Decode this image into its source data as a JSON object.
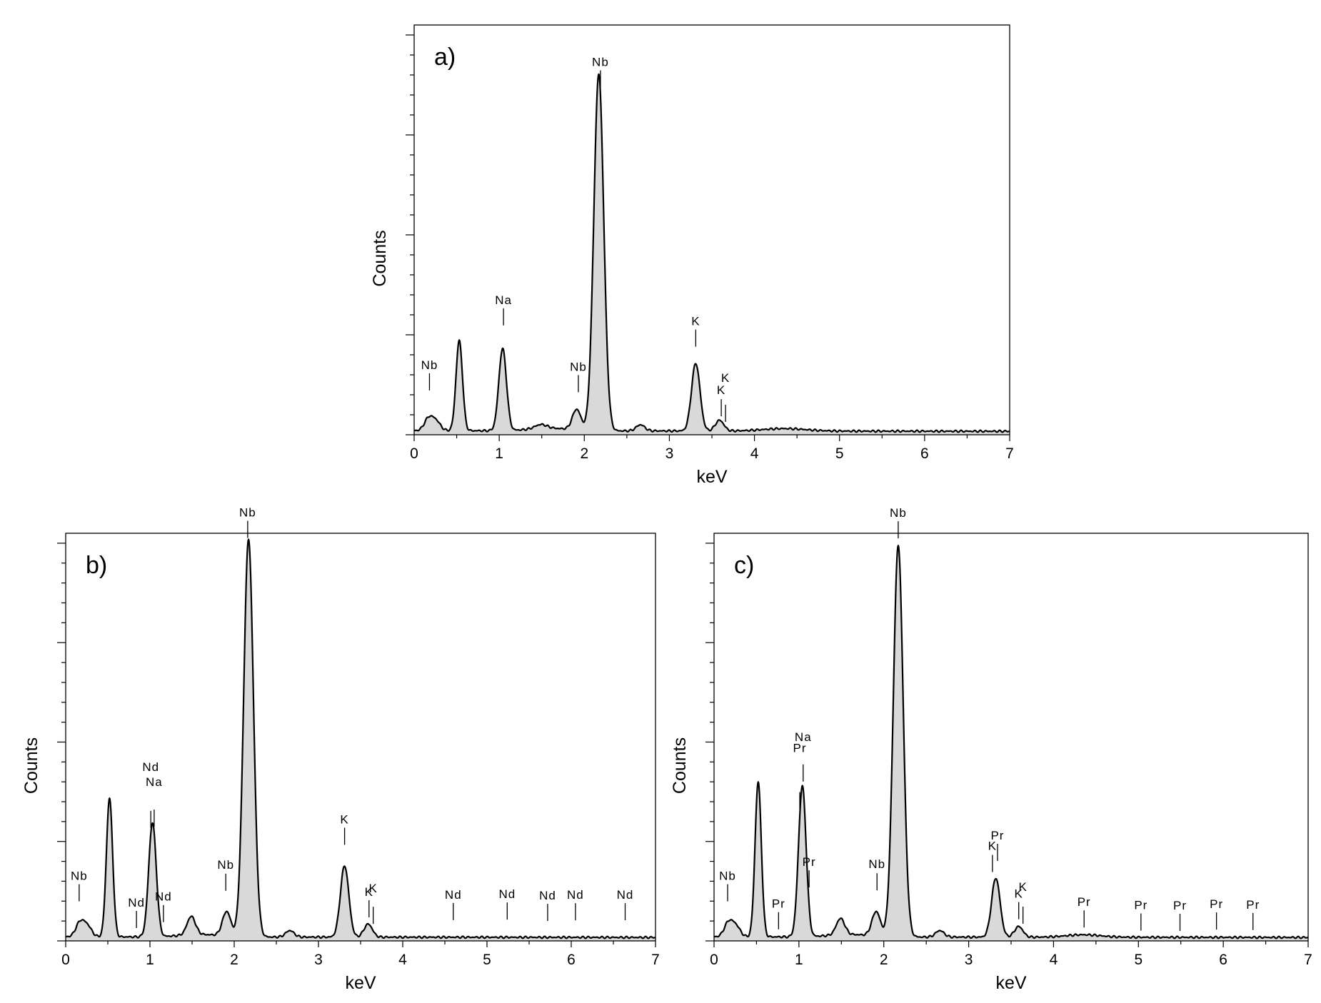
{
  "chart_data": [
    {
      "type": "area",
      "panel_label": "a)",
      "xlabel": "keV",
      "ylabel": "Counts",
      "xlim": [
        0,
        7
      ],
      "ylim": [
        0,
        100
      ],
      "x_ticks": [
        "0",
        "1",
        "2",
        "3",
        "4",
        "5",
        "6",
        "7"
      ],
      "grid": false,
      "background": 1.0,
      "peaks": [
        {
          "x": 0.17,
          "height": 3.0,
          "width": 0.05
        },
        {
          "x": 0.26,
          "height": 2.2,
          "width": 0.05
        },
        {
          "x": 0.53,
          "height": 22.0,
          "width": 0.038
        },
        {
          "x": 1.04,
          "height": 20.0,
          "width": 0.045
        },
        {
          "x": 1.49,
          "height": 1.0,
          "width": 0.07
        },
        {
          "x": 1.91,
          "height": 5.0,
          "width": 0.05
        },
        {
          "x": 2.17,
          "height": 87.0,
          "width": 0.058
        },
        {
          "x": 2.66,
          "height": 1.5,
          "width": 0.05
        },
        {
          "x": 3.31,
          "height": 16.5,
          "width": 0.05
        },
        {
          "x": 3.59,
          "height": 2.6,
          "width": 0.05
        },
        {
          "x": 4.35,
          "height": 0.6,
          "width": 0.25
        }
      ],
      "annotations": [
        {
          "label": "Nb",
          "x": 0.18
        },
        {
          "label": "Na",
          "x": 1.05
        },
        {
          "label": "Nb",
          "x": 1.93
        },
        {
          "label": "Nb",
          "x": 2.19
        },
        {
          "label": "K",
          "x": 3.31
        },
        {
          "label": "K",
          "x": 3.61
        },
        {
          "label": "K",
          "x": 3.66
        }
      ]
    },
    {
      "type": "area",
      "panel_label": "b)",
      "xlabel": "keV",
      "ylabel": "Counts",
      "xlim": [
        0,
        7
      ],
      "ylim": [
        0,
        100
      ],
      "x_ticks": [
        "0",
        "1",
        "2",
        "3",
        "4",
        "5",
        "6",
        "7"
      ],
      "grid": false,
      "background": 1.0,
      "peaks": [
        {
          "x": 0.17,
          "height": 3.5,
          "width": 0.05
        },
        {
          "x": 0.26,
          "height": 2.5,
          "width": 0.05
        },
        {
          "x": 0.52,
          "height": 34.0,
          "width": 0.037
        },
        {
          "x": 1.03,
          "height": 28.0,
          "width": 0.045
        },
        {
          "x": 1.49,
          "height": 4.5,
          "width": 0.05
        },
        {
          "x": 1.91,
          "height": 6.0,
          "width": 0.05
        },
        {
          "x": 2.17,
          "height": 97.5,
          "width": 0.058
        },
        {
          "x": 2.66,
          "height": 1.6,
          "width": 0.05
        },
        {
          "x": 3.31,
          "height": 17.5,
          "width": 0.05
        },
        {
          "x": 3.59,
          "height": 3.2,
          "width": 0.05
        }
      ],
      "annotations": [
        {
          "label": "Nb",
          "x": 0.16
        },
        {
          "label": "Nd",
          "x": 0.84
        },
        {
          "label": "Nd",
          "x": 1.01
        },
        {
          "label": "Na",
          "x": 1.05
        },
        {
          "label": "Nd",
          "x": 1.16
        },
        {
          "label": "Nb",
          "x": 1.9
        },
        {
          "label": "Nb",
          "x": 2.16
        },
        {
          "label": "K",
          "x": 3.31
        },
        {
          "label": "K",
          "x": 3.6
        },
        {
          "label": "K",
          "x": 3.65
        },
        {
          "label": "Nd",
          "x": 4.6
        },
        {
          "label": "Nd",
          "x": 5.24
        },
        {
          "label": "Nd",
          "x": 5.72
        },
        {
          "label": "Nd",
          "x": 6.05
        },
        {
          "label": "Nd",
          "x": 6.64
        }
      ]
    },
    {
      "type": "area",
      "panel_label": "c)",
      "xlabel": "keV",
      "ylabel": "Counts",
      "xlim": [
        0,
        7
      ],
      "ylim": [
        0,
        100
      ],
      "x_ticks": [
        "0",
        "1",
        "2",
        "3",
        "4",
        "5",
        "6",
        "7"
      ],
      "grid": false,
      "background": 1.0,
      "peaks": [
        {
          "x": 0.17,
          "height": 3.5,
          "width": 0.05
        },
        {
          "x": 0.26,
          "height": 2.5,
          "width": 0.05
        },
        {
          "x": 0.52,
          "height": 38.0,
          "width": 0.037
        },
        {
          "x": 1.04,
          "height": 37.0,
          "width": 0.045
        },
        {
          "x": 1.49,
          "height": 4.0,
          "width": 0.05
        },
        {
          "x": 1.91,
          "height": 6.0,
          "width": 0.05
        },
        {
          "x": 2.17,
          "height": 96.0,
          "width": 0.058
        },
        {
          "x": 2.66,
          "height": 1.6,
          "width": 0.05
        },
        {
          "x": 3.32,
          "height": 14.5,
          "width": 0.05
        },
        {
          "x": 3.59,
          "height": 2.6,
          "width": 0.05
        },
        {
          "x": 4.35,
          "height": 0.6,
          "width": 0.2
        }
      ],
      "annotations": [
        {
          "label": "Nb",
          "x": 0.16
        },
        {
          "label": "Pr",
          "x": 0.76
        },
        {
          "label": "Pr",
          "x": 1.01
        },
        {
          "label": "Na",
          "x": 1.05
        },
        {
          "label": "Pr",
          "x": 1.12
        },
        {
          "label": "Nb",
          "x": 1.92
        },
        {
          "label": "Nb",
          "x": 2.17
        },
        {
          "label": "K",
          "x": 3.28
        },
        {
          "label": "Pr",
          "x": 3.34
        },
        {
          "label": "K",
          "x": 3.59
        },
        {
          "label": "K",
          "x": 3.64
        },
        {
          "label": "Pr",
          "x": 4.36
        },
        {
          "label": "Pr",
          "x": 5.03
        },
        {
          "label": "Pr",
          "x": 5.49
        },
        {
          "label": "Pr",
          "x": 5.92
        },
        {
          "label": "Pr",
          "x": 6.35
        }
      ]
    }
  ]
}
